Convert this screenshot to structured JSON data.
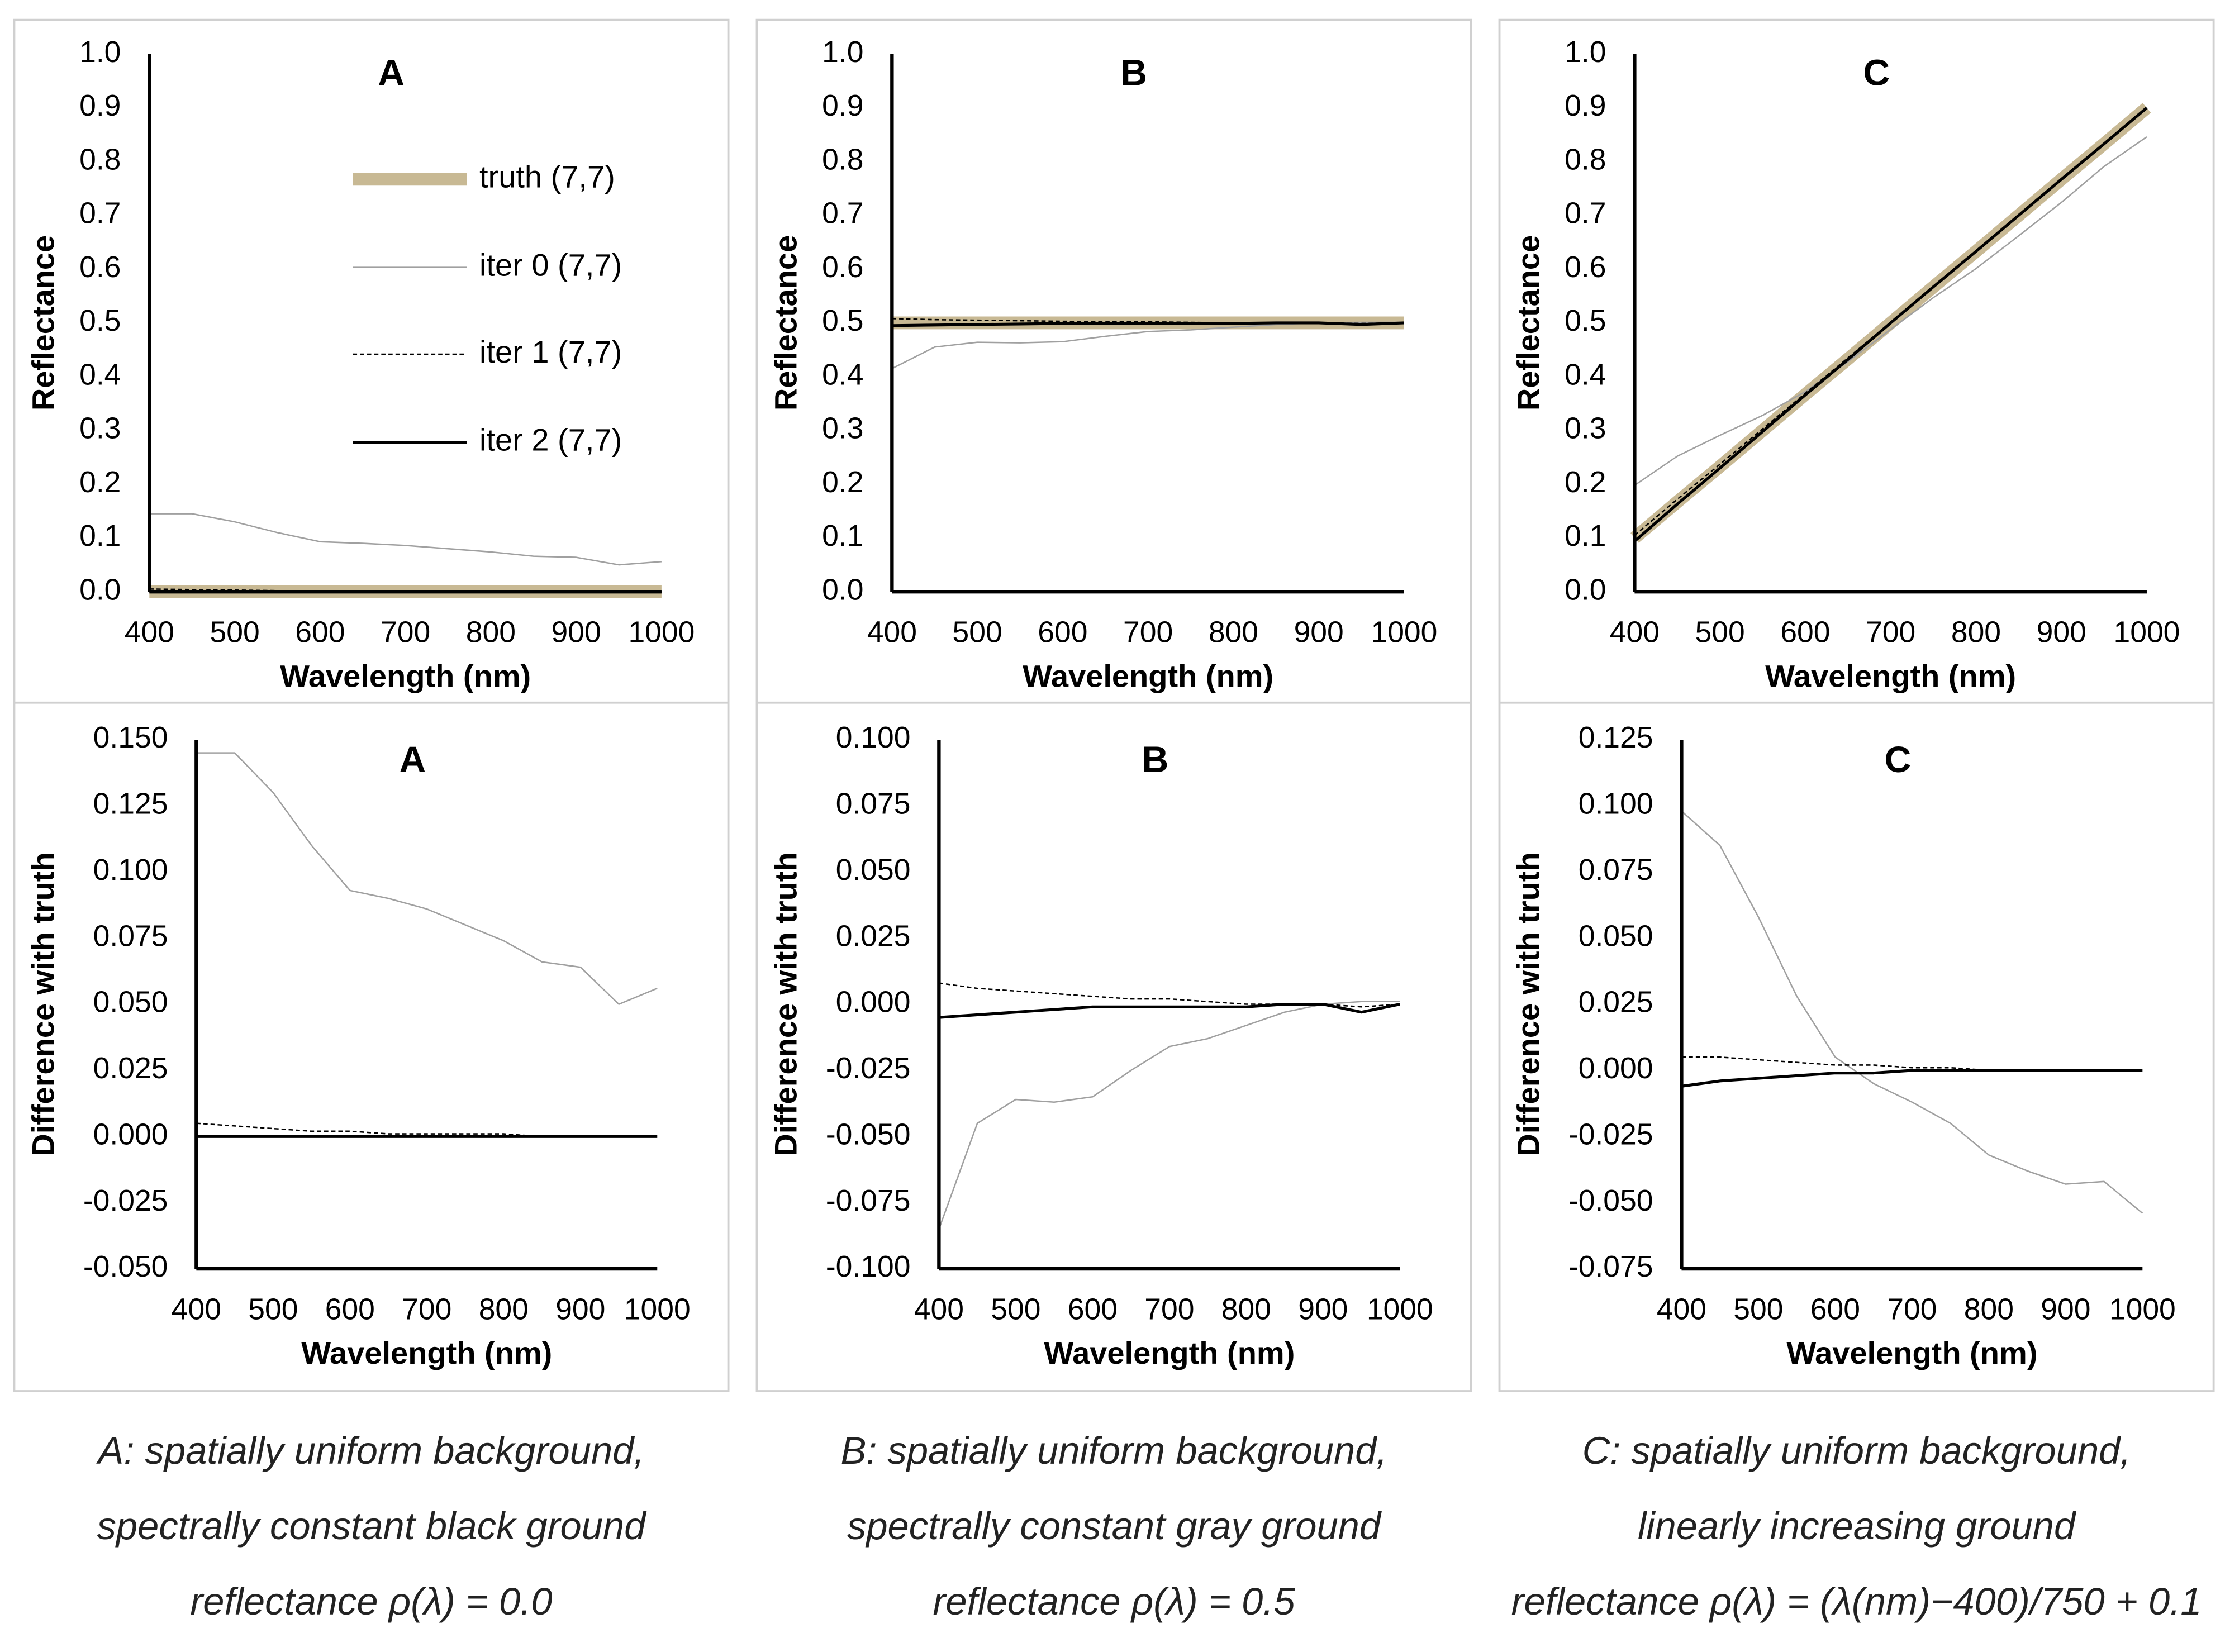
{
  "chart_data": [
    {
      "type": "line",
      "title": "A",
      "x_label": "Wavelength (nm)",
      "y_label": "Reflectance",
      "legend": "upper right",
      "x": [
        400,
        450,
        500,
        550,
        600,
        650,
        700,
        750,
        800,
        850,
        900,
        950,
        1000
      ],
      "xlim": [
        400,
        1000
      ],
      "xticks": [
        400,
        500,
        600,
        700,
        800,
        900,
        1000
      ],
      "ylim": [
        0,
        1
      ],
      "yticks": [
        {
          "value": 0,
          "label": "0.0"
        },
        0.1,
        0.2,
        0.3,
        0.4,
        0.5,
        0.6,
        0.7,
        0.8,
        0.9,
        {
          "value": 1,
          "label": "1.0"
        }
      ],
      "series": [
        {
          "name": "truth (7,7)",
          "color": "#c8b994",
          "values": [
            0,
            0,
            0,
            0,
            0,
            0,
            0,
            0,
            0,
            0,
            0,
            0,
            0
          ]
        },
        {
          "name": "iter 0 (7,7)",
          "color": "#a0a0a0",
          "values": [
            0.145,
            0.145,
            0.13,
            0.11,
            0.093,
            0.09,
            0.086,
            0.08,
            0.074,
            0.066,
            0.064,
            0.05,
            0.056
          ]
        },
        {
          "name": "iter 1 (7,7)",
          "color": "#000000",
          "values": [
            0.005,
            0.004,
            0.003,
            0.002,
            0.002,
            0.001,
            0.001,
            0.001,
            0.001,
            0,
            0,
            0,
            0
          ]
        },
        {
          "name": "iter 2 (7,7)",
          "color": "#000000",
          "values": [
            0,
            0,
            0,
            0,
            0,
            0,
            0,
            0,
            0,
            0,
            0,
            0,
            0
          ]
        }
      ]
    },
    {
      "type": "line",
      "title": "B",
      "x_label": "Wavelength (nm)",
      "y_label": "Reflectance",
      "x": [
        400,
        450,
        500,
        550,
        600,
        650,
        700,
        750,
        800,
        850,
        900,
        950,
        1000
      ],
      "xlim": [
        400,
        1000
      ],
      "xticks": [
        400,
        500,
        600,
        700,
        800,
        900,
        1000
      ],
      "ylim": [
        0,
        1
      ],
      "yticks": [
        {
          "value": 0,
          "label": "0.0"
        },
        0.1,
        0.2,
        0.3,
        0.4,
        0.5,
        0.6,
        0.7,
        0.8,
        0.9,
        {
          "value": 1,
          "label": "1.0"
        }
      ],
      "series": [
        {
          "color": "#c8b994",
          "values": [
            0.5,
            0.5,
            0.5,
            0.5,
            0.5,
            0.5,
            0.5,
            0.5,
            0.5,
            0.5,
            0.5,
            0.5,
            0.5
          ]
        },
        {
          "color": "#a0a0a0",
          "values": [
            0.415,
            0.455,
            0.464,
            0.463,
            0.465,
            0.475,
            0.484,
            0.487,
            0.492,
            0.497,
            0.5,
            0.501,
            0.501
          ]
        },
        {
          "color": "#000000",
          "values": [
            0.508,
            0.506,
            0.505,
            0.504,
            0.503,
            0.502,
            0.502,
            0.501,
            0.5,
            0.5,
            0.5,
            0.499,
            0.5
          ]
        },
        {
          "color": "#000000",
          "values": [
            0.495,
            0.496,
            0.497,
            0.498,
            0.499,
            0.499,
            0.499,
            0.499,
            0.499,
            0.5,
            0.5,
            0.497,
            0.5
          ]
        }
      ]
    },
    {
      "type": "line",
      "title": "C",
      "x_label": "Wavelength (nm)",
      "y_label": "Reflectance",
      "x": [
        400,
        450,
        500,
        550,
        600,
        650,
        700,
        750,
        800,
        850,
        900,
        950,
        1000
      ],
      "xlim": [
        400,
        1000
      ],
      "xticks": [
        400,
        500,
        600,
        700,
        800,
        900,
        1000
      ],
      "ylim": [
        0,
        1
      ],
      "yticks": [
        {
          "value": 0,
          "label": "0.0"
        },
        0.1,
        0.2,
        0.3,
        0.4,
        0.5,
        0.6,
        0.7,
        0.8,
        0.9,
        {
          "value": 1,
          "label": "1.0"
        }
      ],
      "series": [
        {
          "color": "#c8b994",
          "values": [
            0.1,
            0.167,
            0.233,
            0.3,
            0.367,
            0.433,
            0.5,
            0.567,
            0.633,
            0.7,
            0.767,
            0.833,
            0.9
          ]
        },
        {
          "color": "#a0a0a0",
          "values": [
            0.198,
            0.252,
            0.291,
            0.328,
            0.372,
            0.428,
            0.488,
            0.547,
            0.601,
            0.662,
            0.724,
            0.791,
            0.846
          ]
        },
        {
          "color": "#000000",
          "values": [
            0.105,
            0.172,
            0.237,
            0.303,
            0.369,
            0.435,
            0.501,
            0.568,
            0.633,
            0.7,
            0.767,
            0.833,
            0.9
          ]
        },
        {
          "color": "#000000",
          "values": [
            0.094,
            0.163,
            0.23,
            0.298,
            0.366,
            0.432,
            0.5,
            0.567,
            0.633,
            0.7,
            0.767,
            0.833,
            0.9
          ]
        }
      ]
    },
    {
      "type": "line",
      "title": "A",
      "x_label": "Wavelength (nm)",
      "y_label": "Difference with truth",
      "x": [
        400,
        450,
        500,
        550,
        600,
        650,
        700,
        750,
        800,
        850,
        900,
        950,
        1000
      ],
      "xlim": [
        400,
        1000
      ],
      "xticks": [
        400,
        500,
        600,
        700,
        800,
        900,
        1000
      ],
      "ylim": [
        -0.05,
        0.15
      ],
      "yticks": [
        {
          "value": -0.05,
          "label": "-0.050"
        },
        -0.025,
        {
          "value": 0,
          "label": "0.000"
        },
        0.025,
        {
          "value": 0.05,
          "label": "0.050"
        },
        0.075,
        {
          "value": 0.1,
          "label": "0.100"
        },
        0.125,
        {
          "value": 0.15,
          "label": "0.150"
        }
      ],
      "series": [
        {
          "color": "#a0a0a0",
          "values": [
            0.145,
            0.145,
            0.13,
            0.11,
            0.093,
            0.09,
            0.086,
            0.08,
            0.074,
            0.066,
            0.064,
            0.05,
            0.056
          ]
        },
        {
          "color": "#000000",
          "values": [
            0.005,
            0.004,
            0.003,
            0.002,
            0.002,
            0.001,
            0.001,
            0.001,
            0.001,
            0,
            0,
            0,
            0
          ]
        },
        {
          "color": "#000000",
          "values": [
            0,
            0,
            0,
            0,
            0,
            0,
            0,
            0,
            0,
            0,
            0,
            0,
            0
          ]
        }
      ]
    },
    {
      "type": "line",
      "title": "B",
      "x_label": "Wavelength (nm)",
      "y_label": "Difference with truth",
      "x": [
        400,
        450,
        500,
        550,
        600,
        650,
        700,
        750,
        800,
        850,
        900,
        950,
        1000
      ],
      "xlim": [
        400,
        1000
      ],
      "xticks": [
        400,
        500,
        600,
        700,
        800,
        900,
        1000
      ],
      "ylim": [
        -0.1,
        0.1
      ],
      "yticks": [
        {
          "value": -0.1,
          "label": "-0.100"
        },
        -0.075,
        {
          "value": -0.05,
          "label": "-0.050"
        },
        -0.025,
        {
          "value": 0,
          "label": "0.000"
        },
        0.025,
        {
          "value": 0.05,
          "label": "0.050"
        },
        0.075,
        {
          "value": 0.1,
          "label": "0.100"
        }
      ],
      "series": [
        {
          "color": "#a0a0a0",
          "values": [
            -0.085,
            -0.045,
            -0.036,
            -0.037,
            -0.035,
            -0.025,
            -0.016,
            -0.013,
            -0.008,
            -0.003,
            0,
            0.001,
            0.001
          ]
        },
        {
          "color": "#000000",
          "values": [
            0.008,
            0.006,
            0.005,
            0.004,
            0.003,
            0.002,
            0.002,
            0.001,
            0,
            0,
            0,
            -0.001,
            0
          ]
        },
        {
          "color": "#000000",
          "values": [
            -0.005,
            -0.004,
            -0.003,
            -0.002,
            -0.001,
            -0.001,
            -0.001,
            -0.001,
            -0.001,
            0,
            0,
            -0.003,
            0
          ]
        }
      ]
    },
    {
      "type": "line",
      "title": "C",
      "x_label": "Wavelength (nm)",
      "y_label": "Difference with truth",
      "x": [
        400,
        450,
        500,
        550,
        600,
        650,
        700,
        750,
        800,
        850,
        900,
        950,
        1000
      ],
      "xlim": [
        400,
        1000
      ],
      "xticks": [
        400,
        500,
        600,
        700,
        800,
        900,
        1000
      ],
      "ylim": [
        -0.075,
        0.125
      ],
      "yticks": [
        -0.075,
        {
          "value": -0.05,
          "label": "-0.050"
        },
        -0.025,
        {
          "value": 0,
          "label": "0.000"
        },
        0.025,
        {
          "value": 0.05,
          "label": "0.050"
        },
        0.075,
        {
          "value": 0.1,
          "label": "0.100"
        },
        0.125
      ],
      "series": [
        {
          "color": "#a0a0a0",
          "values": [
            0.098,
            0.085,
            0.058,
            0.028,
            0.005,
            -0.005,
            -0.012,
            -0.02,
            -0.032,
            -0.038,
            -0.043,
            -0.042,
            -0.054
          ]
        },
        {
          "color": "#000000",
          "values": [
            0.005,
            0.005,
            0.004,
            0.003,
            0.002,
            0.002,
            0.001,
            0.001,
            0,
            0,
            0,
            0,
            0
          ]
        },
        {
          "color": "#000000",
          "values": [
            -0.006,
            -0.004,
            -0.003,
            -0.002,
            -0.001,
            -0.001,
            0,
            0,
            0,
            0,
            0,
            0,
            0
          ]
        }
      ]
    }
  ],
  "captions": [
    [
      "A: spatially uniform background,",
      "spectrally constant black ground",
      "reflectance ρ(λ) = 0.0"
    ],
    [
      "B: spatially uniform background,",
      "spectrally constant gray ground",
      "reflectance ρ(λ) = 0.5"
    ],
    [
      "C: spatially uniform background,",
      "linearly increasing ground",
      "reflectance ρ(λ) = (λ(nm)−400)/750 + 0.1"
    ]
  ]
}
